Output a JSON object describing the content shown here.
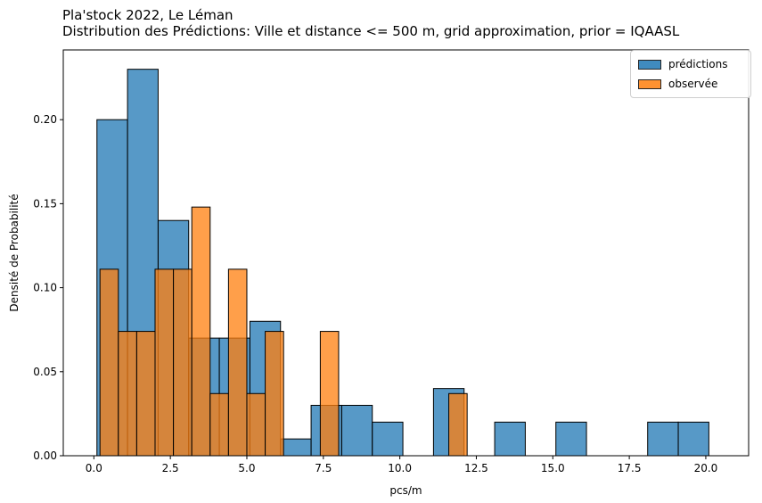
{
  "title_line1": "Pla'stock 2022, Le Léman",
  "title_line2": "Distribution des Prédictions: Ville et distance <= 500 m, grid approximation, prior = IQAASL",
  "colors": {
    "predictions": "#1f77b4",
    "observed": "#ff7f0e"
  },
  "chart_data": {
    "type": "histogram",
    "xlabel": "pcs/m",
    "ylabel": "Densité de Probabilité",
    "xlim": [
      -1.0,
      21.4
    ],
    "ylim": [
      0.0,
      0.2415
    ],
    "xticks": [
      0.0,
      2.5,
      5.0,
      7.5,
      10.0,
      12.5,
      15.0,
      17.5,
      20.0
    ],
    "xtick_labels": [
      "0.0",
      "2.5",
      "5.0",
      "7.5",
      "10.0",
      "12.5",
      "15.0",
      "17.5",
      "20.0"
    ],
    "yticks": [
      0.0,
      0.05,
      0.1,
      0.15,
      0.2
    ],
    "ytick_labels": [
      "0.00",
      "0.05",
      "0.10",
      "0.15",
      "0.20"
    ],
    "legend_position": "top-right",
    "series": [
      {
        "name": "prédictions",
        "color_key": "predictions",
        "bins": [
          {
            "x0": 0.1,
            "x1": 1.1,
            "density": 0.2
          },
          {
            "x0": 1.1,
            "x1": 2.1,
            "density": 0.23
          },
          {
            "x0": 2.1,
            "x1": 3.1,
            "density": 0.14
          },
          {
            "x0": 3.1,
            "x1": 4.1,
            "density": 0.07
          },
          {
            "x0": 4.1,
            "x1": 5.1,
            "density": 0.07
          },
          {
            "x0": 5.1,
            "x1": 6.1,
            "density": 0.08
          },
          {
            "x0": 6.1,
            "x1": 7.1,
            "density": 0.01
          },
          {
            "x0": 7.1,
            "x1": 8.1,
            "density": 0.03
          },
          {
            "x0": 8.1,
            "x1": 9.1,
            "density": 0.03
          },
          {
            "x0": 9.1,
            "x1": 10.1,
            "density": 0.02
          },
          {
            "x0": 10.1,
            "x1": 11.1,
            "density": 0.0
          },
          {
            "x0": 11.1,
            "x1": 12.1,
            "density": 0.04
          },
          {
            "x0": 12.1,
            "x1": 13.1,
            "density": 0.0
          },
          {
            "x0": 13.1,
            "x1": 14.1,
            "density": 0.02
          },
          {
            "x0": 14.1,
            "x1": 15.1,
            "density": 0.0
          },
          {
            "x0": 15.1,
            "x1": 16.1,
            "density": 0.02
          },
          {
            "x0": 16.1,
            "x1": 17.1,
            "density": 0.0
          },
          {
            "x0": 17.1,
            "x1": 18.1,
            "density": 0.0
          },
          {
            "x0": 18.1,
            "x1": 19.1,
            "density": 0.02
          },
          {
            "x0": 19.1,
            "x1": 20.1,
            "density": 0.02
          }
        ]
      },
      {
        "name": "observée",
        "color_key": "observed",
        "bins": [
          {
            "x0": 0.2,
            "x1": 0.8,
            "density": 0.111
          },
          {
            "x0": 0.8,
            "x1": 1.4,
            "density": 0.074
          },
          {
            "x0": 1.4,
            "x1": 2.0,
            "density": 0.074
          },
          {
            "x0": 2.0,
            "x1": 2.6,
            "density": 0.111
          },
          {
            "x0": 2.6,
            "x1": 3.2,
            "density": 0.111
          },
          {
            "x0": 3.2,
            "x1": 3.8,
            "density": 0.148
          },
          {
            "x0": 3.8,
            "x1": 4.4,
            "density": 0.037
          },
          {
            "x0": 4.4,
            "x1": 5.0,
            "density": 0.111
          },
          {
            "x0": 5.0,
            "x1": 5.6,
            "density": 0.037
          },
          {
            "x0": 5.6,
            "x1": 6.2,
            "density": 0.074
          },
          {
            "x0": 6.2,
            "x1": 6.8,
            "density": 0.0
          },
          {
            "x0": 6.8,
            "x1": 7.4,
            "density": 0.0
          },
          {
            "x0": 7.4,
            "x1": 8.0,
            "density": 0.074
          },
          {
            "x0": 8.0,
            "x1": 8.6,
            "density": 0.0
          },
          {
            "x0": 8.6,
            "x1": 9.2,
            "density": 0.0
          },
          {
            "x0": 9.2,
            "x1": 9.8,
            "density": 0.0
          },
          {
            "x0": 9.8,
            "x1": 10.4,
            "density": 0.0
          },
          {
            "x0": 10.4,
            "x1": 11.0,
            "density": 0.0
          },
          {
            "x0": 11.0,
            "x1": 11.6,
            "density": 0.0
          },
          {
            "x0": 11.6,
            "x1": 12.2,
            "density": 0.037
          }
        ]
      }
    ]
  }
}
